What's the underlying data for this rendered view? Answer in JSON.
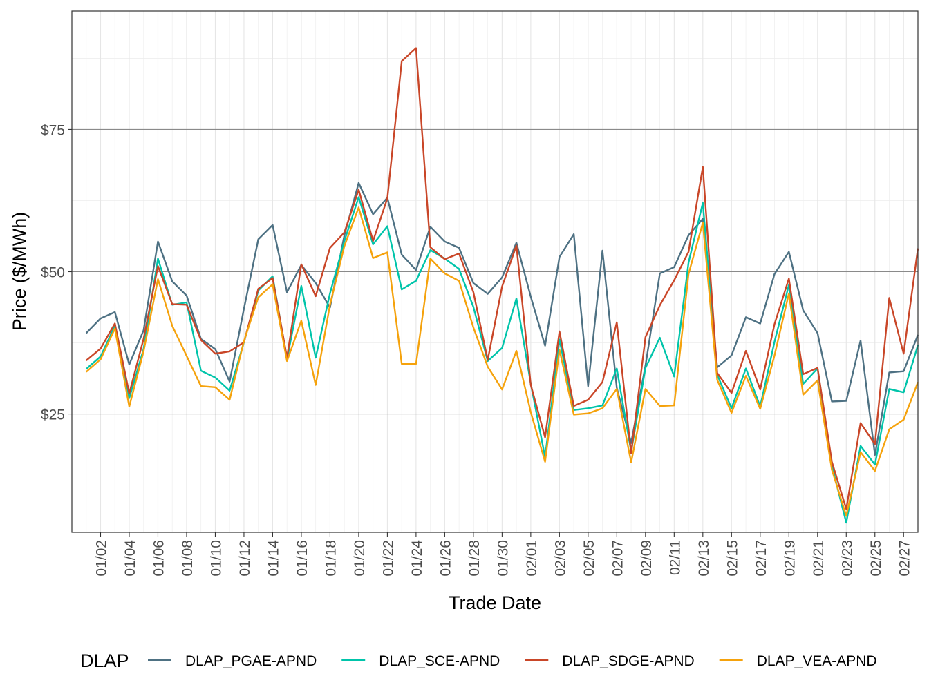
{
  "chart_data": {
    "type": "line",
    "xlabel": "Trade Date",
    "ylabel": "Price ($/MWh)",
    "legend_title": "DLAP",
    "legend_position": "bottom",
    "grid": true,
    "xlim": [
      0,
      59
    ],
    "ylim": [
      4.2,
      95.8
    ],
    "y_ticks": [
      25,
      50,
      75
    ],
    "y_tick_labels": [
      "$25",
      "$50",
      "$75"
    ],
    "x": [
      "01/01",
      "01/02",
      "01/03",
      "01/04",
      "01/05",
      "01/06",
      "01/07",
      "01/08",
      "01/09",
      "01/10",
      "01/11",
      "01/12",
      "01/13",
      "01/14",
      "01/15",
      "01/16",
      "01/17",
      "01/18",
      "01/19",
      "01/20",
      "01/21",
      "01/22",
      "01/23",
      "01/24",
      "01/25",
      "01/26",
      "01/27",
      "01/28",
      "01/29",
      "01/30",
      "01/31",
      "02/01",
      "02/02",
      "02/03",
      "02/04",
      "02/05",
      "02/06",
      "02/07",
      "02/08",
      "02/09",
      "02/10",
      "02/11",
      "02/12",
      "02/13",
      "02/14",
      "02/15",
      "02/16",
      "02/17",
      "02/18",
      "02/19",
      "02/20",
      "02/21",
      "02/22",
      "02/23",
      "02/24",
      "02/25",
      "02/26",
      "02/27",
      "02/28"
    ],
    "x_tick_labels": [
      "01/02",
      "01/04",
      "01/06",
      "01/08",
      "01/10",
      "01/12",
      "01/14",
      "01/16",
      "01/18",
      "01/20",
      "01/22",
      "01/24",
      "01/26",
      "01/28",
      "01/30",
      "02/01",
      "02/03",
      "02/05",
      "02/07",
      "02/09",
      "02/11",
      "02/13",
      "02/15",
      "02/17",
      "02/19",
      "02/21",
      "02/23",
      "02/25",
      "02/27"
    ],
    "series": [
      {
        "name": "DLAP_PGAE-APND",
        "color": "#4e7183",
        "values": [
          39.2,
          41.8,
          42.9,
          33.7,
          39.7,
          55.3,
          48.3,
          45.8,
          38.2,
          36.4,
          30.7,
          43.5,
          55.7,
          58.2,
          46.4,
          51.2,
          48.0,
          43.7,
          56.4,
          65.6,
          60.1,
          63.0,
          53.0,
          50.3,
          57.9,
          55.3,
          54.2,
          48.0,
          46.1,
          49.0,
          55.1,
          45.6,
          37.0,
          52.6,
          56.6,
          29.9,
          53.7,
          29.6,
          19.9,
          33.5,
          49.7,
          50.8,
          56.4,
          59.3,
          33.2,
          35.3,
          42.0,
          40.9,
          49.6,
          53.5,
          43.2,
          39.2,
          27.2,
          27.3,
          37.9,
          17.8,
          32.3,
          32.5,
          38.9
        ]
      },
      {
        "name": "DLAP_SCE-APND",
        "color": "#00c4aa",
        "values": [
          32.9,
          35.1,
          40.5,
          27.8,
          36.4,
          52.3,
          44.2,
          44.6,
          32.6,
          31.4,
          29.1,
          37.6,
          46.7,
          49.2,
          34.6,
          47.5,
          34.9,
          46.2,
          55.4,
          63.1,
          54.8,
          58.0,
          46.9,
          48.4,
          53.8,
          52.3,
          50.5,
          43.8,
          34.3,
          36.6,
          45.3,
          30.3,
          17.4,
          38.1,
          25.7,
          26.0,
          26.5,
          33.0,
          18.4,
          33.1,
          38.4,
          31.6,
          51.6,
          62.1,
          31.9,
          26.0,
          33.0,
          26.3,
          37.7,
          47.7,
          30.3,
          33.0,
          15.9,
          5.9,
          19.4,
          16.1,
          29.4,
          28.8,
          37.1
        ]
      },
      {
        "name": "DLAP_SDGE-APND",
        "color": "#c94628",
        "values": [
          34.4,
          36.5,
          40.9,
          28.6,
          38.2,
          51.0,
          44.3,
          44.2,
          38.0,
          35.6,
          36.0,
          37.6,
          47.0,
          48.9,
          34.9,
          51.3,
          45.7,
          54.2,
          56.9,
          64.4,
          55.4,
          62.9,
          87.0,
          89.3,
          54.3,
          52.2,
          53.2,
          46.4,
          34.5,
          47.4,
          54.6,
          30.1,
          20.9,
          39.5,
          26.4,
          27.5,
          30.6,
          41.1,
          18.1,
          38.5,
          44.1,
          48.5,
          53.5,
          68.4,
          32.2,
          28.7,
          36.1,
          29.3,
          40.8,
          48.8,
          32.0,
          33.1,
          16.6,
          8.3,
          23.4,
          19.7,
          45.4,
          35.6,
          54.1
        ]
      },
      {
        "name": "DLAP_VEA-APND",
        "color": "#f5a20c",
        "values": [
          32.4,
          34.6,
          40.0,
          26.3,
          36.0,
          48.7,
          40.5,
          35.2,
          29.9,
          29.7,
          27.5,
          37.8,
          45.5,
          47.8,
          34.3,
          41.4,
          30.1,
          44.2,
          54.5,
          61.3,
          52.4,
          53.4,
          33.8,
          33.8,
          52.3,
          49.7,
          48.4,
          40.2,
          33.3,
          29.3,
          36.1,
          25.3,
          16.6,
          36.3,
          24.9,
          25.1,
          26.0,
          29.4,
          16.5,
          29.4,
          26.4,
          26.5,
          49.6,
          58.6,
          31.0,
          25.2,
          31.7,
          25.9,
          35.3,
          46.2,
          28.4,
          30.9,
          15.2,
          7.1,
          18.3,
          15.0,
          22.3,
          24.0,
          30.6
        ]
      }
    ]
  }
}
